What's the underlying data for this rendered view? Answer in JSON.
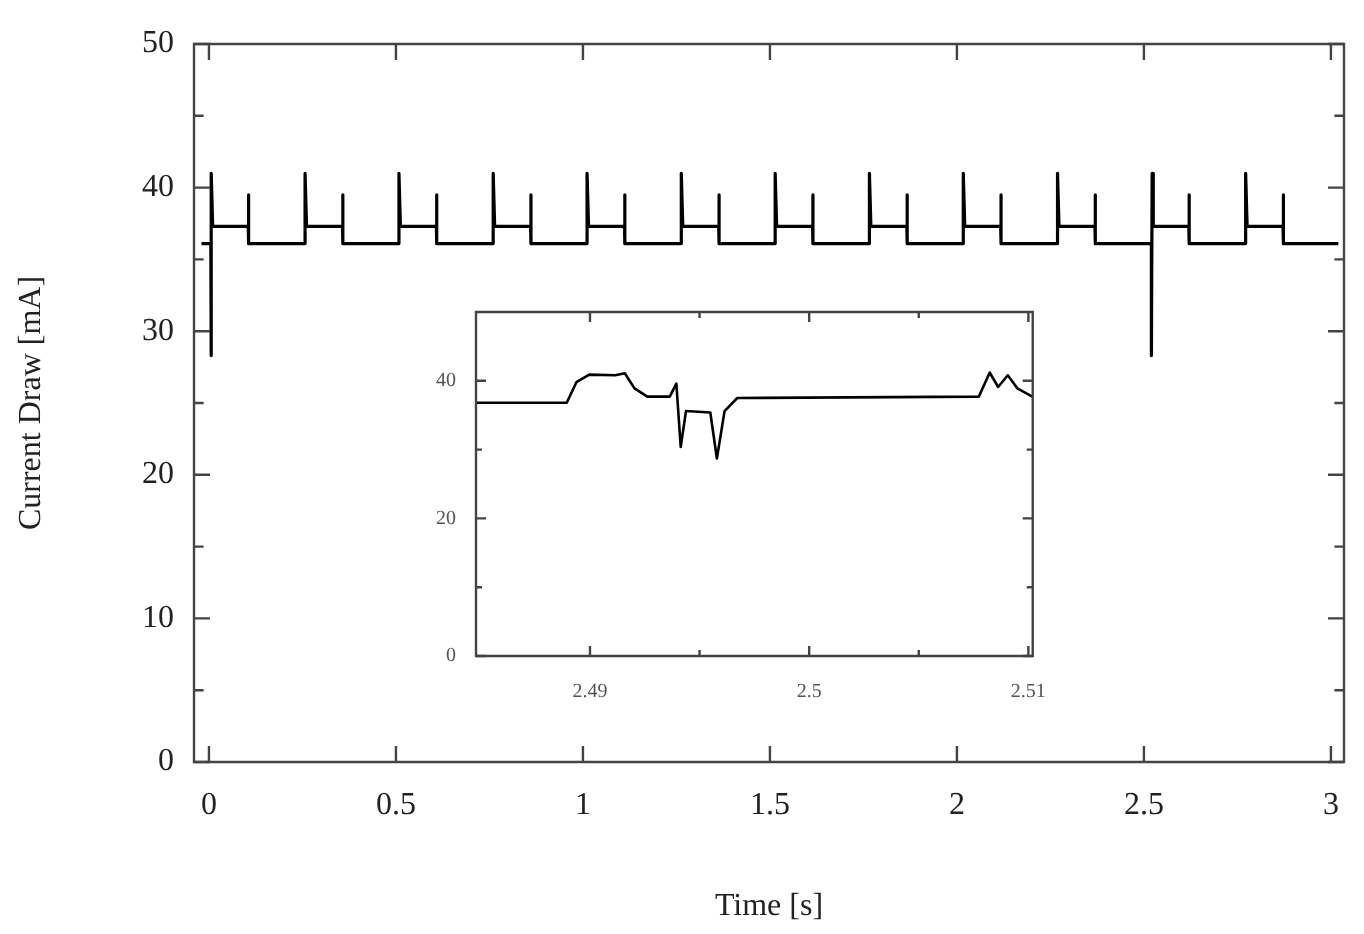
{
  "chart_data": [
    {
      "type": "line",
      "xlabel": "Time [s]",
      "ylabel": "Current Draw [mA]",
      "color": "#000000",
      "marker": "none",
      "legend": false,
      "grid": false,
      "xlim": [
        -0.04,
        3.035
      ],
      "xticks": [
        0,
        0.5,
        1,
        1.5,
        2,
        2.5,
        3
      ],
      "ylim": [
        0,
        50
      ],
      "yticks": [
        0,
        {
          "value": 5,
          "label": null
        },
        10,
        {
          "value": 15,
          "label": null
        },
        20,
        {
          "value": 25,
          "label": null
        },
        30,
        {
          "value": 35,
          "label": null
        },
        40,
        {
          "value": 45,
          "label": null
        },
        50
      ],
      "x": [
        -0.02,
        0.005,
        0.005,
        0.007,
        0.01,
        0.105,
        0.105,
        0.107,
        0.257,
        0.257,
        0.261,
        0.357,
        0.357,
        0.359,
        0.508,
        0.508,
        0.512,
        0.608,
        0.608,
        0.61,
        0.76,
        0.76,
        0.764,
        0.86,
        0.86,
        0.862,
        1.011,
        1.011,
        1.015,
        1.111,
        1.111,
        1.113,
        1.263,
        1.263,
        1.267,
        1.363,
        1.363,
        1.365,
        1.514,
        1.514,
        1.518,
        1.614,
        1.614,
        1.616,
        1.766,
        1.766,
        1.77,
        1.866,
        1.866,
        1.868,
        2.017,
        2.017,
        2.021,
        2.117,
        2.117,
        2.119,
        2.269,
        2.269,
        2.273,
        2.369,
        2.369,
        2.371,
        2.52,
        2.52,
        2.522,
        2.525,
        2.62,
        2.62,
        2.622,
        2.772,
        2.772,
        2.776,
        2.872,
        2.872,
        2.874,
        3.02
      ],
      "values": [
        36.1,
        36.1,
        28.3,
        41,
        37.3,
        37.3,
        39.5,
        36.1,
        36.1,
        41,
        37.3,
        37.3,
        39.5,
        36.1,
        36.1,
        41,
        37.3,
        37.3,
        39.5,
        36.1,
        36.1,
        41,
        37.3,
        37.3,
        39.5,
        36.1,
        36.1,
        41,
        37.3,
        37.3,
        39.5,
        36.1,
        36.1,
        41,
        37.3,
        37.3,
        39.5,
        36.1,
        36.1,
        41,
        37.3,
        37.3,
        39.5,
        36.1,
        36.1,
        41,
        37.3,
        37.3,
        39.5,
        36.1,
        36.1,
        41,
        37.3,
        37.3,
        39.5,
        36.1,
        36.1,
        41,
        37.3,
        37.3,
        39.5,
        36.1,
        36.1,
        28.3,
        41,
        37.3,
        37.3,
        39.5,
        36.1,
        36.1,
        41,
        37.3,
        37.3,
        39.5,
        36.1,
        36.1
      ]
    },
    {
      "type": "line",
      "color": "#000000",
      "marker": "none",
      "legend": false,
      "grid": false,
      "xlim": [
        2.4848,
        2.5102
      ],
      "xticks": [
        2.49,
        {
          "value": 2.495,
          "label": null
        },
        2.5,
        {
          "value": 2.505,
          "label": null
        },
        2.51
      ],
      "ylim": [
        0,
        50
      ],
      "yticks": [
        0,
        {
          "value": 10,
          "label": null
        },
        20,
        {
          "value": 30,
          "label": null
        },
        40
      ],
      "x": [
        2.4848,
        2.48894,
        2.48938,
        2.48997,
        2.49115,
        2.49159,
        2.49203,
        2.49262,
        2.49364,
        2.49394,
        2.49414,
        2.49438,
        2.49549,
        2.49579,
        2.49614,
        2.49672,
        2.50774,
        2.50824,
        2.50862,
        2.50906,
        2.5095,
        2.51018
      ],
      "values": [
        36.8,
        36.8,
        39.8,
        40.9,
        40.8,
        41.1,
        38.9,
        37.7,
        37.7,
        39.6,
        30.4,
        35.6,
        35.4,
        28.7,
        35.6,
        37.5,
        37.7,
        41.2,
        39.1,
        40.8,
        38.9,
        37.7
      ]
    }
  ]
}
